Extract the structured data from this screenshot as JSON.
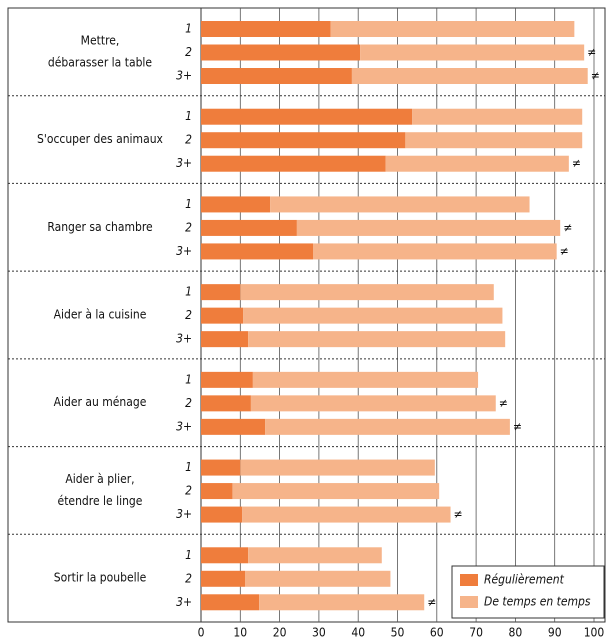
{
  "chart_data": {
    "type": "stacked-barh",
    "groups": [
      {
        "label": [
          "Mettre,",
          "débarasser la table"
        ]
      },
      {
        "label": [
          "S'occuper des animaux"
        ]
      },
      {
        "label": [
          "Ranger sa chambre"
        ]
      },
      {
        "label": [
          "Aider à la cuisine"
        ]
      },
      {
        "label": [
          "Aider au ménage"
        ]
      },
      {
        "label": [
          "Aider à plier,",
          "étendre le linge"
        ]
      },
      {
        "label": [
          "Sortir la poubelle"
        ]
      }
    ],
    "categories": [
      "1",
      "2",
      "3+",
      "1",
      "2",
      "3+",
      "1",
      "2",
      "3+",
      "1",
      "2",
      "3+",
      "1",
      "2",
      "3+",
      "1",
      "2",
      "3+",
      "1",
      "2",
      "3+"
    ],
    "series": [
      {
        "name": "Régulièrement",
        "color": "#ef7d3c",
        "values": [
          33,
          40.5,
          38.4,
          53.7,
          52,
          47,
          17.6,
          24.4,
          28.5,
          10,
          10.7,
          12,
          13.2,
          12.7,
          16.3,
          10,
          8,
          10.5,
          12,
          11.2,
          14.8
        ]
      },
      {
        "name": "De temps en temps",
        "color": "#f6b48a",
        "values": [
          62,
          57,
          60,
          43.3,
          45,
          46.6,
          66,
          67,
          62,
          64.5,
          66,
          65.4,
          57.3,
          62.3,
          62.3,
          49.5,
          52.6,
          53,
          34,
          37,
          42
        ]
      }
    ],
    "annotations": [
      null,
      "≠",
      "≠",
      null,
      null,
      "≠",
      null,
      "≠",
      "≠",
      null,
      null,
      null,
      null,
      "≠",
      "≠",
      null,
      null,
      "≠",
      null,
      null,
      "≠"
    ],
    "xlim": [
      0,
      100
    ],
    "xticks": [
      0,
      10,
      20,
      30,
      40,
      50,
      60,
      70,
      80,
      90,
      100
    ],
    "grid": true,
    "legend": "lower right"
  }
}
